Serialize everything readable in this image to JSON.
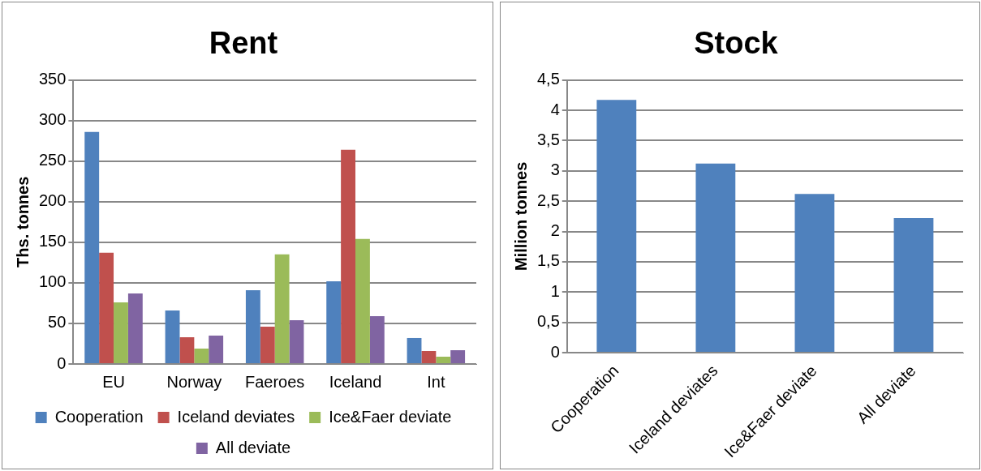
{
  "chart_data": [
    {
      "type": "bar",
      "title": "Rent",
      "ylabel": "Ths. tonnes",
      "categories": [
        "EU",
        "Norway",
        "Faeroes",
        "Iceland",
        "Int"
      ],
      "series": [
        {
          "name": "Cooperation",
          "color": "#4f81bd",
          "values": [
            286,
            66,
            91,
            102,
            32
          ]
        },
        {
          "name": "Iceland deviates",
          "color": "#c0504d",
          "values": [
            137,
            33,
            46,
            264,
            16
          ]
        },
        {
          "name": "Ice&Faer deviate",
          "color": "#9bbb59",
          "values": [
            76,
            19,
            135,
            154,
            9
          ]
        },
        {
          "name": "All deviate",
          "color": "#8064a2",
          "values": [
            87,
            35,
            54,
            59,
            17
          ]
        }
      ],
      "ylim": [
        0,
        350
      ],
      "yticks": [
        0,
        50,
        100,
        150,
        200,
        250,
        300,
        350
      ],
      "grid": "y",
      "legend": "bottom"
    },
    {
      "type": "bar",
      "title": "Stock",
      "ylabel": "Million tonnes",
      "categories": [
        "Cooperation",
        "Iceland deviates",
        "Ice&Faer deviate",
        "All deviate"
      ],
      "values": [
        4.17,
        3.12,
        2.62,
        2.22
      ],
      "color": "#4f81bd",
      "ylim": [
        0,
        4.5
      ],
      "yticks": [
        0,
        {
          "value": 0.5,
          "label": "0,5"
        },
        1,
        {
          "value": 1.5,
          "label": "1,5"
        },
        2,
        {
          "value": 2.5,
          "label": "2,5"
        },
        3,
        {
          "value": 3.5,
          "label": "3,5"
        },
        4,
        {
          "value": 4.5,
          "label": "4,5"
        }
      ],
      "grid": "y"
    }
  ]
}
